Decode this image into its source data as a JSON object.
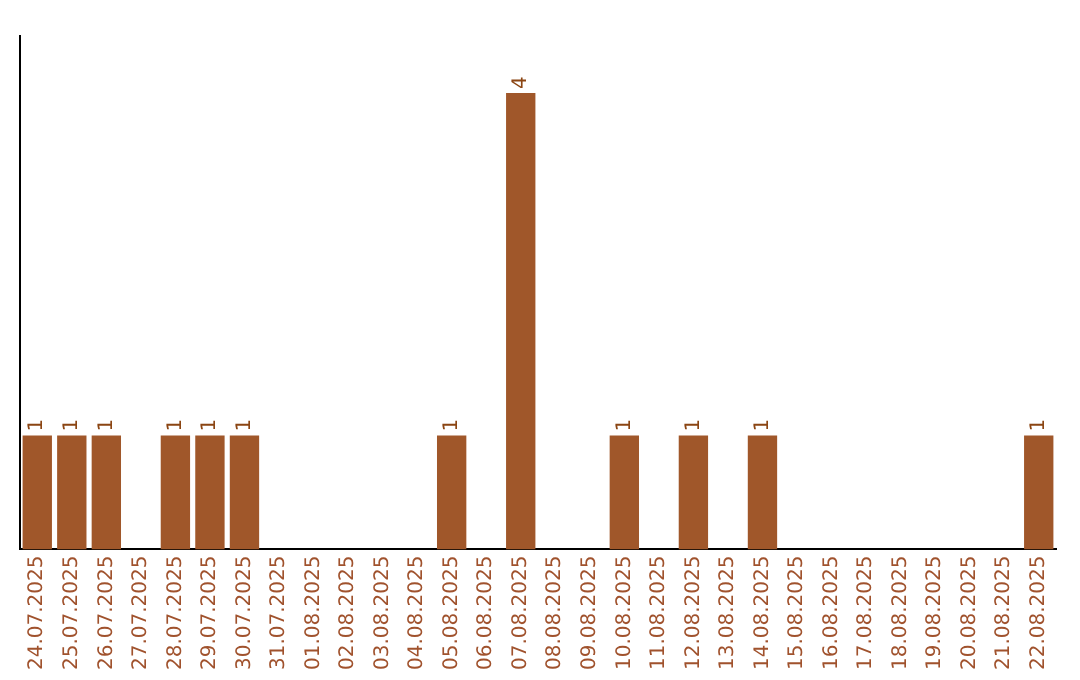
{
  "chart_data": {
    "type": "bar",
    "categories": [
      "24.07.2025",
      "25.07.2025",
      "26.07.2025",
      "27.07.2025",
      "28.07.2025",
      "29.07.2025",
      "30.07.2025",
      "31.07.2025",
      "01.08.2025",
      "02.08.2025",
      "03.08.2025",
      "04.08.2025",
      "05.08.2025",
      "06.08.2025",
      "07.08.2025",
      "08.08.2025",
      "09.08.2025",
      "10.08.2025",
      "11.08.2025",
      "12.08.2025",
      "13.08.2025",
      "14.08.2025",
      "15.08.2025",
      "16.08.2025",
      "17.08.2025",
      "18.08.2025",
      "19.08.2025",
      "20.08.2025",
      "21.08.2025",
      "22.08.2025"
    ],
    "values": [
      1,
      1,
      1,
      0,
      1,
      1,
      1,
      0,
      0,
      0,
      0,
      0,
      1,
      0,
      4,
      0,
      0,
      1,
      0,
      1,
      0,
      1,
      0,
      0,
      0,
      0,
      0,
      0,
      0,
      1
    ],
    "value_labels": [
      "1",
      "1",
      "1",
      null,
      "1",
      "1",
      "1",
      null,
      null,
      null,
      null,
      null,
      "1",
      null,
      "4",
      null,
      null,
      "1",
      null,
      "1",
      null,
      "1",
      null,
      null,
      null,
      null,
      null,
      null,
      null,
      "1"
    ],
    "color": "#a0572a",
    "grid": false,
    "legend": false,
    "tick_labels": "x"
  }
}
